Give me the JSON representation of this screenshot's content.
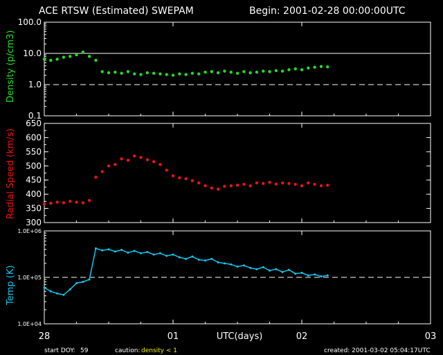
{
  "header": {
    "title": "ACE RTSW (Estimated) SWEPAM",
    "begin": "Begin: 2001-02-28 00:00:00UTC"
  },
  "footer": {
    "start_doy_label": "start DOY:",
    "start_doy_value": "59",
    "caution_label": "caution:",
    "caution_value": "density < 1",
    "created": "created: 2001-03-02 05:04:17UTC"
  },
  "colors": {
    "background": "#000000",
    "axes": "#ffffff",
    "density": "#22dd22",
    "speed": "#ee1111",
    "temp": "#11c8f0",
    "caution": "#eeee00"
  },
  "chart_data": [
    {
      "type": "scatter",
      "name": "density",
      "ylabel": "Density (p/cm3)",
      "yscale": "log",
      "ylim": [
        0.1,
        100
      ],
      "yticks": [
        "0.1",
        "1.0",
        "10.0",
        "100.0"
      ],
      "ytick_values": [
        0.1,
        1,
        10,
        100
      ],
      "reference_lines": [
        {
          "value": 10,
          "style": "solid"
        },
        {
          "value": 1,
          "style": "dashed"
        }
      ],
      "xlim_days": [
        0,
        3
      ],
      "x_days": [
        0,
        0.05,
        0.1,
        0.15,
        0.2,
        0.25,
        0.3,
        0.35,
        0.4,
        0.45,
        0.5,
        0.55,
        0.6,
        0.65,
        0.7,
        0.75,
        0.8,
        0.85,
        0.9,
        0.95,
        1.0,
        1.05,
        1.1,
        1.15,
        1.2,
        1.25,
        1.3,
        1.35,
        1.4,
        1.45,
        1.5,
        1.55,
        1.6,
        1.65,
        1.7,
        1.75,
        1.8,
        1.85,
        1.9,
        1.95,
        2.0,
        2.05,
        2.1,
        2.15,
        2.2
      ],
      "values": [
        6.5,
        6.0,
        6.5,
        7.5,
        8.0,
        9.0,
        11.0,
        8.0,
        6.0,
        2.6,
        2.4,
        2.5,
        2.3,
        2.6,
        2.2,
        2.1,
        2.4,
        2.3,
        2.2,
        2.1,
        2.0,
        2.2,
        2.1,
        2.3,
        2.2,
        2.5,
        2.6,
        2.4,
        2.7,
        2.5,
        2.3,
        2.6,
        2.4,
        2.5,
        2.7,
        2.6,
        2.8,
        2.7,
        3.0,
        3.2,
        3.0,
        3.4,
        3.6,
        3.8,
        3.7
      ]
    },
    {
      "type": "scatter",
      "name": "radial speed",
      "ylabel": "Radial Speed (km/s)",
      "ylim": [
        300,
        650
      ],
      "yticks": [
        "300",
        "350",
        "400",
        "450",
        "500",
        "550",
        "600",
        "650"
      ],
      "ytick_values": [
        300,
        350,
        400,
        450,
        500,
        550,
        600,
        650
      ],
      "xlim_days": [
        0,
        3
      ],
      "x_days": [
        0,
        0.05,
        0.1,
        0.15,
        0.2,
        0.25,
        0.3,
        0.35,
        0.4,
        0.45,
        0.5,
        0.55,
        0.6,
        0.65,
        0.7,
        0.75,
        0.8,
        0.85,
        0.9,
        0.95,
        1.0,
        1.05,
        1.1,
        1.15,
        1.2,
        1.25,
        1.3,
        1.35,
        1.4,
        1.45,
        1.5,
        1.55,
        1.6,
        1.65,
        1.7,
        1.75,
        1.8,
        1.85,
        1.9,
        1.95,
        2.0,
        2.05,
        2.1,
        2.15,
        2.2
      ],
      "values": [
        365,
        368,
        372,
        370,
        375,
        372,
        370,
        378,
        460,
        480,
        500,
        505,
        525,
        520,
        535,
        530,
        522,
        515,
        505,
        485,
        465,
        458,
        455,
        448,
        440,
        430,
        422,
        418,
        428,
        430,
        432,
        435,
        430,
        440,
        438,
        442,
        436,
        440,
        438,
        435,
        430,
        440,
        435,
        430,
        432
      ]
    },
    {
      "type": "line",
      "name": "temperature",
      "ylabel": "Temp (K)",
      "yscale": "log",
      "ylim": [
        10000,
        1000000
      ],
      "yticks": [
        "1.0E+04",
        "1.0E+05",
        "1.0E+06"
      ],
      "ytick_values": [
        10000,
        100000,
        1000000
      ],
      "reference_lines": [
        {
          "value": 100000,
          "style": "dashed"
        }
      ],
      "xlim_days": [
        0,
        3
      ],
      "x_days": [
        0,
        0.05,
        0.1,
        0.15,
        0.2,
        0.25,
        0.3,
        0.35,
        0.4,
        0.45,
        0.5,
        0.55,
        0.6,
        0.65,
        0.7,
        0.75,
        0.8,
        0.85,
        0.9,
        0.95,
        1.0,
        1.05,
        1.1,
        1.15,
        1.2,
        1.25,
        1.3,
        1.35,
        1.4,
        1.45,
        1.5,
        1.55,
        1.6,
        1.65,
        1.7,
        1.75,
        1.8,
        1.85,
        1.9,
        1.95,
        2.0,
        2.05,
        2.1,
        2.15,
        2.2
      ],
      "values": [
        60000,
        50000,
        45000,
        42000,
        55000,
        75000,
        80000,
        90000,
        420000,
        380000,
        400000,
        360000,
        390000,
        340000,
        370000,
        330000,
        350000,
        310000,
        330000,
        290000,
        310000,
        270000,
        250000,
        280000,
        240000,
        230000,
        250000,
        210000,
        200000,
        190000,
        170000,
        180000,
        160000,
        150000,
        165000,
        140000,
        150000,
        130000,
        145000,
        120000,
        125000,
        110000,
        115000,
        105000,
        110000
      ]
    }
  ],
  "xaxis": {
    "label": "UTC(days)",
    "ticks": [
      "28",
      "01",
      "02",
      "03"
    ],
    "tick_values_days": [
      0,
      1,
      2,
      3
    ]
  }
}
